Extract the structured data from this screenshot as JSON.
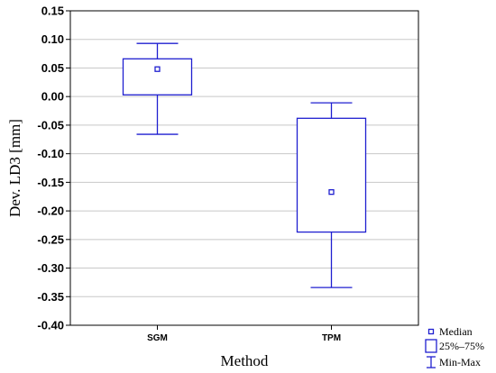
{
  "chart_data": {
    "type": "box",
    "xlabel": "Method",
    "ylabel": "Dev. LD3 [mm]",
    "ylim": [
      -0.4,
      0.15
    ],
    "yticks": [
      0.15,
      0.1,
      0.05,
      0.0,
      -0.05,
      -0.1,
      -0.15,
      -0.2,
      -0.25,
      -0.3,
      -0.35,
      -0.4
    ],
    "ytick_labels": [
      "0.15",
      "0.10",
      "0.05",
      "0.00",
      "-0.05",
      "-0.10",
      "-0.15",
      "-0.20",
      "-0.25",
      "-0.30",
      "-0.35",
      "-0.40"
    ],
    "grid": true,
    "legend_position": "bottom-right",
    "categories": [
      "SGM",
      "TPM"
    ],
    "boxes": [
      {
        "category": "SGM",
        "min": -0.066,
        "q1": 0.003,
        "median": 0.048,
        "q3": 0.066,
        "max": 0.093
      },
      {
        "category": "TPM",
        "min": -0.334,
        "q1": -0.237,
        "median": -0.167,
        "q3": -0.038,
        "max": -0.011
      }
    ],
    "legend": [
      {
        "marker": "median-square",
        "label": "Median"
      },
      {
        "marker": "box",
        "label": "25%–75%"
      },
      {
        "marker": "whisker",
        "label": "Min-Max"
      }
    ],
    "colors": {
      "box": "#1f1fd0",
      "grid": "#c8c8c8",
      "frame": "#000000"
    }
  }
}
